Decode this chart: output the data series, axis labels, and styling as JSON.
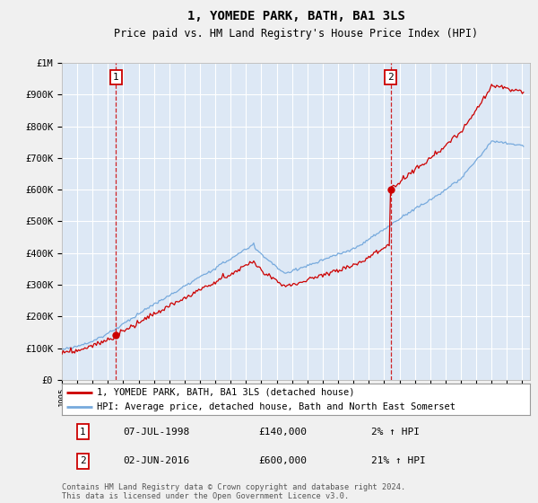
{
  "title": "1, YOMEDE PARK, BATH, BA1 3LS",
  "subtitle": "Price paid vs. HM Land Registry's House Price Index (HPI)",
  "title_fontsize": 10,
  "subtitle_fontsize": 8.5,
  "sale_points": [
    {
      "index": 1,
      "date": "07-JUL-1998",
      "year": 1998.53,
      "price": 140000,
      "hpi_pct": "2% ↑ HPI"
    },
    {
      "index": 2,
      "date": "02-JUN-2016",
      "year": 2016.42,
      "price": 600000,
      "hpi_pct": "21% ↑ HPI"
    }
  ],
  "legend_line1": "1, YOMEDE PARK, BATH, BA1 3LS (detached house)",
  "legend_line2": "HPI: Average price, detached house, Bath and North East Somerset",
  "footer": "Contains HM Land Registry data © Crown copyright and database right 2024.\nThis data is licensed under the Open Government Licence v3.0.",
  "line_color_red": "#cc0000",
  "line_color_blue": "#77aadd",
  "background_color": "#f0f0f0",
  "plot_bg_color": "#dde8f5",
  "grid_color": "#ffffff",
  "ylim": [
    0,
    1000000
  ],
  "xlim": [
    1995.0,
    2025.5
  ],
  "yticks": [
    0,
    100000,
    200000,
    300000,
    400000,
    500000,
    600000,
    700000,
    800000,
    900000,
    1000000
  ],
  "ylabels": [
    "£0",
    "£100K",
    "£200K",
    "£300K",
    "£400K",
    "£500K",
    "£600K",
    "£700K",
    "£800K",
    "£900K",
    "£1M"
  ],
  "table_rows": [
    [
      "1",
      "07-JUL-1998",
      "£140,000",
      "2% ↑ HPI"
    ],
    [
      "2",
      "02-JUN-2016",
      "£600,000",
      "21% ↑ HPI"
    ]
  ]
}
